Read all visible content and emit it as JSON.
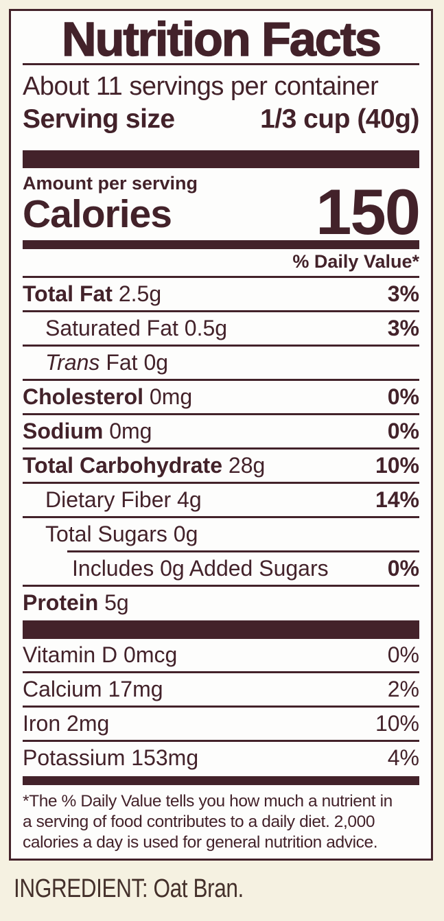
{
  "colors": {
    "text_maroon": "#43222A",
    "panel_background": "#FDFDFC",
    "page_background": "#F5F1E1"
  },
  "label": {
    "title": "Nutrition Facts",
    "servings_per_container": "About 11 servings per container",
    "serving_size_label": "Serving size",
    "serving_size_value": "1/3 cup (40g)",
    "amount_per_serving": "Amount per serving",
    "calories_label": "Calories",
    "calories_value": "150",
    "daily_value_header": "% Daily Value*",
    "rows": [
      {
        "name": "Total Fat",
        "amount": "2.5g",
        "dv": "3%"
      },
      {
        "name": "Saturated Fat",
        "amount": "0.5g",
        "dv": "3%"
      },
      {
        "name": "Trans",
        "amount": "Fat 0g",
        "dv": ""
      },
      {
        "name": "Cholesterol",
        "amount": "0mg",
        "dv": "0%"
      },
      {
        "name": "Sodium",
        "amount": "0mg",
        "dv": "0%"
      },
      {
        "name": "Total Carbohydrate",
        "amount": "28g",
        "dv": "10%"
      },
      {
        "name": "Dietary Fiber",
        "amount": "4g",
        "dv": "14%"
      },
      {
        "name": "Total Sugars",
        "amount": "0g",
        "dv": ""
      },
      {
        "name": "Includes 0g Added Sugars",
        "amount": "",
        "dv": "0%"
      },
      {
        "name": "Protein",
        "amount": "5g",
        "dv": ""
      }
    ],
    "micronutrients": [
      {
        "name": "Vitamin D",
        "amount": "0mcg",
        "dv": "0%"
      },
      {
        "name": "Calcium",
        "amount": "17mg",
        "dv": "2%"
      },
      {
        "name": "Iron",
        "amount": "2mg",
        "dv": "10%"
      },
      {
        "name": "Potassium",
        "amount": "153mg",
        "dv": "4%"
      }
    ],
    "footnote_lines": [
      "*The % Daily Value tells you how much a nutrient in",
      "a serving of food contributes to a daily diet. 2,000",
      "calories a day is used for general nutrition advice."
    ]
  },
  "ingredient_line": "INGREDIENT: Oat Bran."
}
